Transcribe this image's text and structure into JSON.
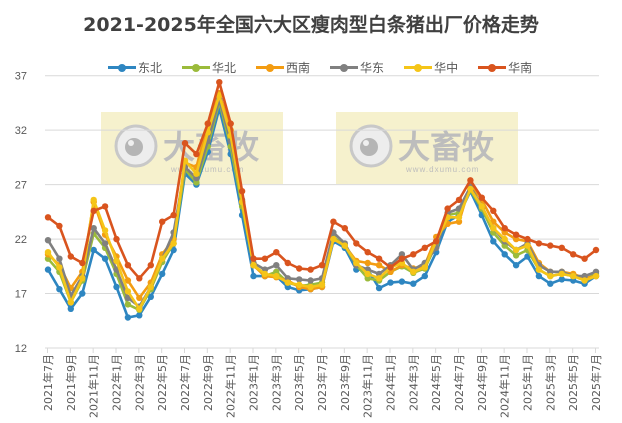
{
  "chart_data": {
    "type": "line",
    "title": "2021-2025年全国六大区瘦肉型白条猪出厂价格走势",
    "xlabel": "",
    "ylabel": "",
    "ylim": [
      12,
      37
    ],
    "yticks": [
      12,
      17,
      22,
      27,
      32,
      37
    ],
    "grid": true,
    "legend_position": "top",
    "x": [
      "2021年7月",
      "2021年8月",
      "2021年9月",
      "2021年10月",
      "2021年11月",
      "2021年12月",
      "2022年1月",
      "2022年2月",
      "2022年3月",
      "2022年4月",
      "2022年5月",
      "2022年6月",
      "2022年7月",
      "2022年8月",
      "2022年9月",
      "2022年10月",
      "2022年11月",
      "2022年12月",
      "2023年1月",
      "2023年2月",
      "2023年3月",
      "2023年4月",
      "2023年5月",
      "2023年6月",
      "2023年7月",
      "2023年8月",
      "2023年9月",
      "2023年10月",
      "2023年11月",
      "2023年12月",
      "2024年1月",
      "2024年2月",
      "2024年3月",
      "2024年4月",
      "2024年5月",
      "2024年6月",
      "2024年7月",
      "2024年8月",
      "2024年9月",
      "2024年10月",
      "2024年11月",
      "2024年12月",
      "2025年1月",
      "2025年2月",
      "2025年3月",
      "2025年4月",
      "2025年5月",
      "2025年6月",
      "2025年7月"
    ],
    "xticks_shown": [
      "2021年7月",
      "2021年9月",
      "2021年11月",
      "2022年1月",
      "2022年3月",
      "2022年5月",
      "2022年7月",
      "2022年9月",
      "2022年11月",
      "2023年1月",
      "2023年3月",
      "2023年5月",
      "2023年7月",
      "2023年9月",
      "2023年11月",
      "2024年1月",
      "2024年3月",
      "2024年5月",
      "2024年7月",
      "2024年9月",
      "2024年11月",
      "2025年1月",
      "2025年3月",
      "2025年5月",
      "2025年7月"
    ],
    "series": [
      {
        "name": "东北",
        "color": "#2E86C1",
        "values": [
          19.2,
          17.4,
          15.6,
          17.0,
          21.0,
          20.2,
          17.6,
          14.8,
          15.0,
          16.7,
          18.8,
          21.0,
          28.0,
          27.0,
          30.0,
          34.0,
          29.8,
          24.2,
          18.6,
          18.6,
          18.6,
          17.6,
          17.3,
          17.4,
          17.6,
          21.8,
          21.2,
          19.2,
          19.2,
          17.5,
          18.0,
          18.1,
          17.9,
          18.6,
          20.8,
          23.6,
          24.2,
          26.4,
          24.2,
          21.8,
          20.6,
          19.6,
          20.4,
          18.6,
          17.9,
          18.3,
          18.2,
          17.9,
          18.6
        ]
      },
      {
        "name": "华北",
        "color": "#9BBB3B",
        "values": [
          20.2,
          19.0,
          16.2,
          18.2,
          22.5,
          21.2,
          18.8,
          16.0,
          15.5,
          17.4,
          19.9,
          21.6,
          28.4,
          27.2,
          30.5,
          34.6,
          30.5,
          25.0,
          19.6,
          18.6,
          19.0,
          18.0,
          17.7,
          17.8,
          18.0,
          22.2,
          21.4,
          19.6,
          18.4,
          18.2,
          19.0,
          19.5,
          18.9,
          19.3,
          21.5,
          24.2,
          24.4,
          26.5,
          24.8,
          22.6,
          21.4,
          20.5,
          21.0,
          19.2,
          18.6,
          18.8,
          18.6,
          18.3,
          18.8
        ]
      },
      {
        "name": "西南",
        "color": "#F39C12",
        "values": [
          20.6,
          19.6,
          17.5,
          19.0,
          25.4,
          22.4,
          20.4,
          18.2,
          16.6,
          18.0,
          20.6,
          22.0,
          29.0,
          28.6,
          32.6,
          35.4,
          32.0,
          25.4,
          19.6,
          18.6,
          18.5,
          18.2,
          17.6,
          17.4,
          17.6,
          22.0,
          21.4,
          20.0,
          19.8,
          19.6,
          19.0,
          19.6,
          19.3,
          19.6,
          22.2,
          23.4,
          23.6,
          27.0,
          25.6,
          23.6,
          22.6,
          22.0,
          21.8,
          19.8,
          19.0,
          19.0,
          18.8,
          18.4,
          18.6
        ]
      },
      {
        "name": "华东",
        "color": "#808080",
        "values": [
          21.9,
          20.2,
          16.8,
          18.6,
          23.0,
          21.6,
          19.2,
          16.6,
          15.8,
          17.6,
          20.2,
          22.6,
          28.6,
          27.6,
          31.0,
          34.8,
          31.0,
          25.6,
          19.8,
          19.2,
          19.6,
          18.4,
          18.3,
          18.2,
          18.4,
          22.6,
          21.6,
          19.6,
          19.2,
          18.8,
          19.6,
          20.6,
          19.2,
          19.8,
          21.2,
          24.4,
          24.8,
          26.8,
          25.0,
          23.0,
          21.8,
          21.0,
          21.6,
          19.6,
          19.0,
          19.0,
          18.6,
          18.6,
          19.0
        ]
      },
      {
        "name": "华中",
        "color": "#F5C518",
        "values": [
          20.8,
          19.4,
          16.2,
          18.4,
          25.6,
          22.8,
          20.0,
          17.2,
          15.6,
          17.6,
          20.2,
          21.6,
          29.2,
          28.0,
          31.8,
          35.2,
          31.5,
          25.4,
          19.6,
          18.8,
          18.6,
          18.0,
          17.8,
          17.6,
          17.8,
          22.0,
          21.4,
          19.8,
          18.8,
          18.4,
          19.4,
          19.8,
          19.0,
          19.4,
          21.8,
          24.0,
          24.0,
          26.6,
          25.0,
          23.0,
          22.0,
          21.0,
          21.4,
          19.2,
          18.6,
          18.8,
          18.6,
          18.2,
          18.6
        ]
      },
      {
        "name": "华南",
        "color": "#D9541E",
        "values": [
          24.0,
          23.2,
          20.4,
          19.8,
          24.6,
          25.0,
          22.0,
          19.6,
          18.4,
          19.6,
          23.6,
          24.2,
          30.8,
          29.8,
          32.6,
          36.4,
          32.6,
          26.4,
          20.2,
          20.2,
          20.8,
          19.8,
          19.3,
          19.2,
          19.6,
          23.6,
          23.0,
          21.6,
          20.8,
          20.2,
          19.4,
          20.2,
          20.6,
          21.2,
          21.8,
          24.8,
          25.6,
          27.4,
          25.8,
          24.6,
          23.0,
          22.4,
          22.0,
          21.6,
          21.4,
          21.2,
          20.6,
          20.2,
          21.0
        ]
      }
    ]
  },
  "watermark": {
    "brand": "大畜牧",
    "url": "www.dxumu.com"
  }
}
